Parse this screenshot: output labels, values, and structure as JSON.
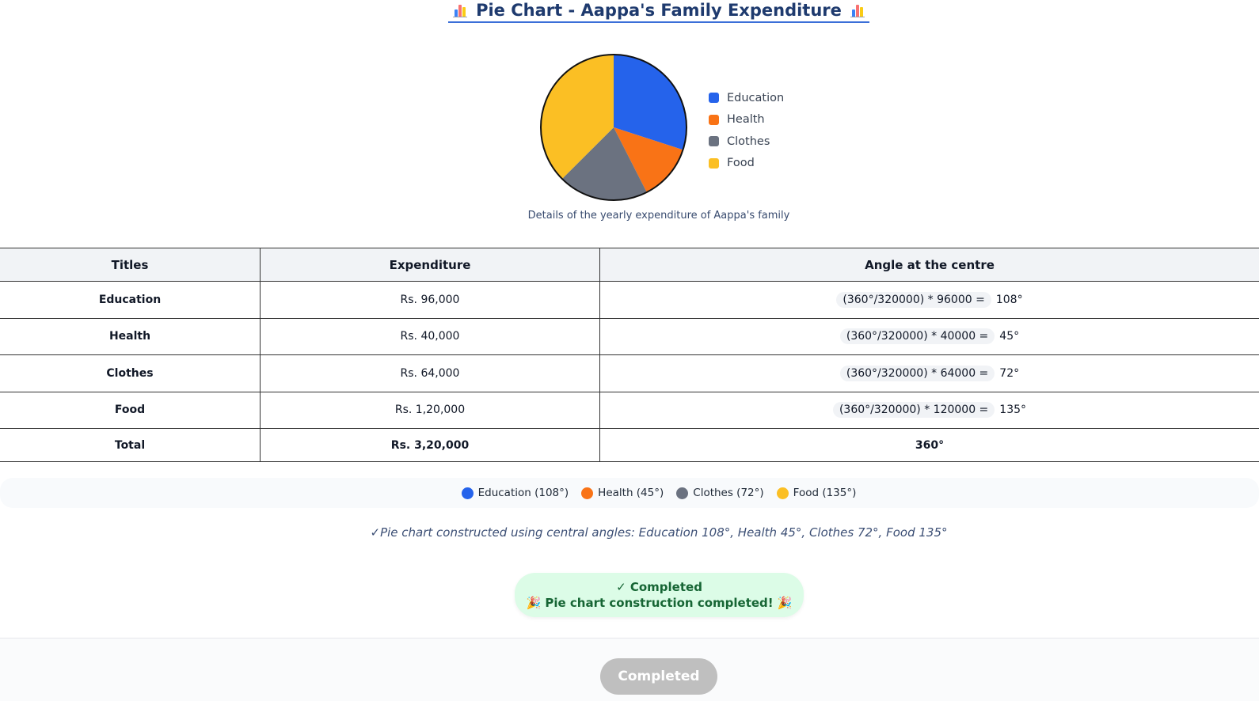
{
  "header": {
    "title": "Pie Chart - Aappa's Family Expenditure"
  },
  "chart_data": {
    "type": "pie",
    "categories": [
      "Education",
      "Health",
      "Clothes",
      "Food"
    ],
    "values": [
      108,
      45,
      72,
      135
    ],
    "colors": [
      "#2563eb",
      "#f97316",
      "#6b7280",
      "#fbbf24"
    ],
    "legend": [
      "Education",
      "Health",
      "Clothes",
      "Food"
    ],
    "legend_position": "right",
    "caption": "Details of the yearly expenditure of Aappa's family"
  },
  "table": {
    "headers": [
      "Titles",
      "Expenditure",
      "Angle at the centre"
    ],
    "rows": [
      {
        "title": "Education",
        "expenditure": "Rs. 96,000",
        "formula": "(360°/320000) * 96000 =",
        "angle": "108°"
      },
      {
        "title": "Health",
        "expenditure": "Rs. 40,000",
        "formula": "(360°/320000) * 40000 =",
        "angle": "45°"
      },
      {
        "title": "Clothes",
        "expenditure": "Rs. 64,000",
        "formula": "(360°/320000) * 64000 =",
        "angle": "72°"
      },
      {
        "title": "Food",
        "expenditure": "Rs. 1,20,000",
        "formula": "(360°/320000) * 120000 =",
        "angle": "135°"
      }
    ],
    "total": {
      "title": "Total",
      "expenditure": "Rs. 3,20,000",
      "angle": "360°"
    }
  },
  "angle_legend": [
    {
      "label": "Education (108°)",
      "color": "#2563eb"
    },
    {
      "label": "Health (45°)",
      "color": "#f97316"
    },
    {
      "label": "Clothes (72°)",
      "color": "#6b7280"
    },
    {
      "label": "Food (135°)",
      "color": "#fbbf24"
    }
  ],
  "note": "✓Pie chart constructed using central angles: Education 108°, Health 45°, Clothes 72°, Food 135°",
  "status": {
    "line1": "✓ Completed",
    "line2": "Pie chart construction completed!"
  },
  "footer": {
    "button_label": "Completed"
  }
}
